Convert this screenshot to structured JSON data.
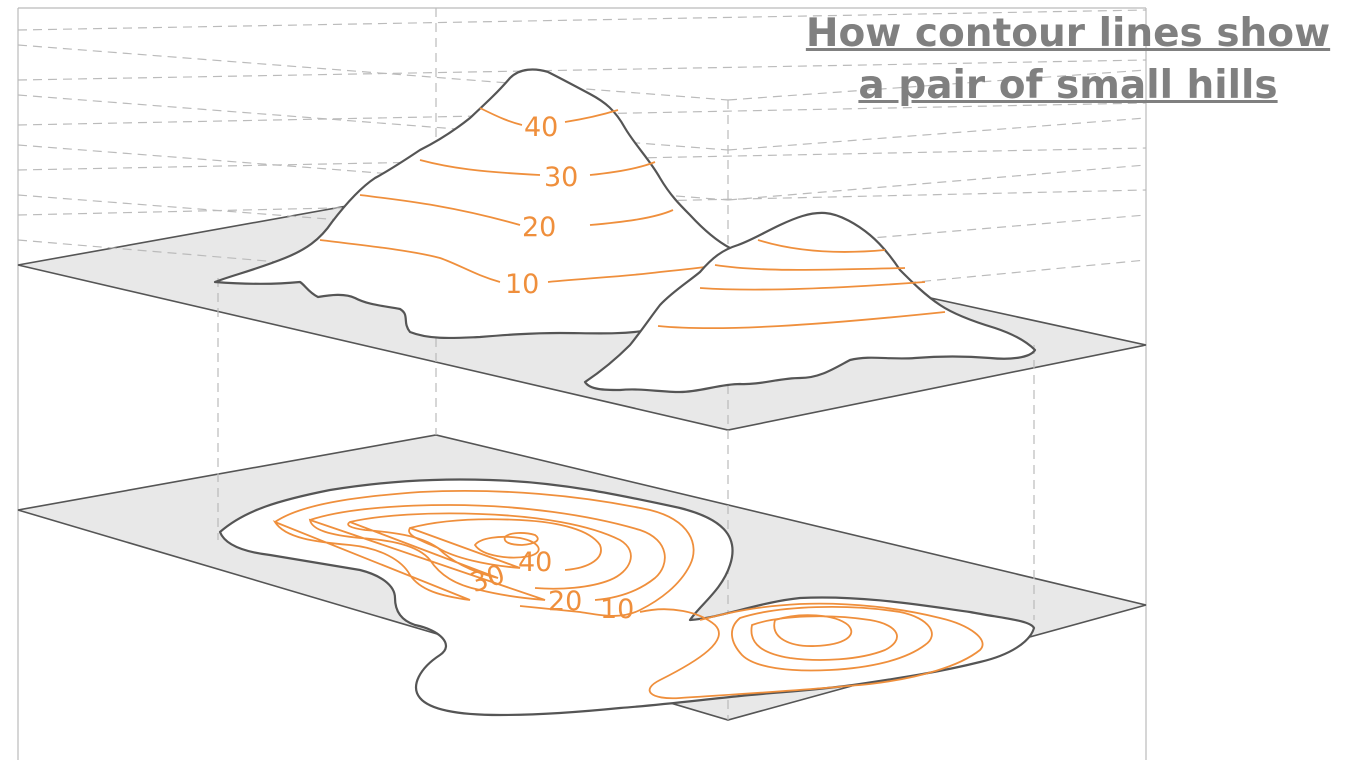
{
  "title": {
    "line1": "How contour lines show",
    "line2": "a pair of small hills"
  },
  "elevation_labels": {
    "hill_view": [
      "40",
      "30",
      "20",
      "10"
    ],
    "map_view": [
      "40",
      "30",
      "20",
      "10"
    ]
  },
  "colors": {
    "contour": "#ef8f3c",
    "outline": "#555555",
    "plane": "#e8e8e8",
    "guide": "#bbbbbb",
    "title": "#808080"
  }
}
